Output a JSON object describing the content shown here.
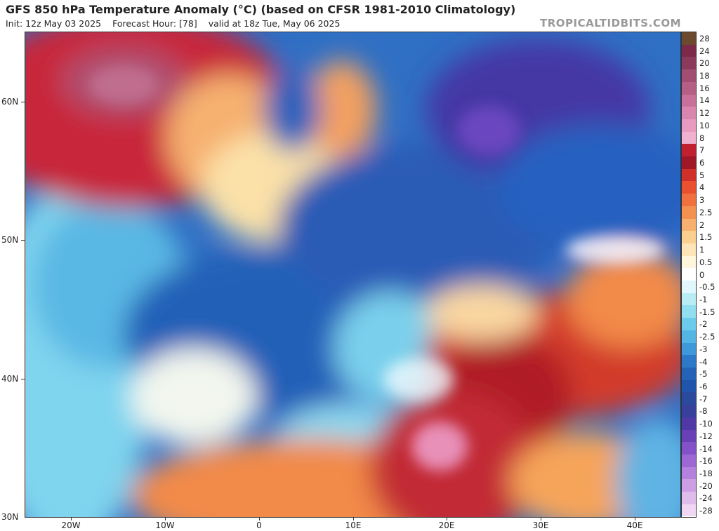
{
  "header": {
    "title": "GFS 850 hPa Temperature Anomaly (°C) (based on CFSR 1981-2010 Climatology)",
    "init": "Init: 12z May 03 2025",
    "forecast_hour": "Forecast Hour: [78]",
    "valid": "valid at 18z Tue, May 06 2025",
    "brand": "TROPICALTIDBITS.COM"
  },
  "axes": {
    "lat_labels": [
      "60N",
      "50N",
      "40N",
      "30N"
    ],
    "lon_labels": [
      "20W",
      "10W",
      "0",
      "10E",
      "20E",
      "30E",
      "40E"
    ]
  },
  "colorbar": {
    "labels": [
      "28",
      "24",
      "20",
      "18",
      "16",
      "14",
      "12",
      "10",
      "8",
      "7",
      "6",
      "5",
      "4",
      "3",
      "2.5",
      "2",
      "1.5",
      "1",
      "0.5",
      "0",
      "-0.5",
      "-1",
      "-1.5",
      "-2",
      "-2.5",
      "-3",
      "-4",
      "-5",
      "-6",
      "-7",
      "-8",
      "-10",
      "-12",
      "-14",
      "-16",
      "-18",
      "-20",
      "-24",
      "-28"
    ],
    "colors": [
      "#6b4a2e",
      "#7d2a4a",
      "#8c3a5c",
      "#a24d72",
      "#b55f86",
      "#c8709a",
      "#d985ad",
      "#e89ac0",
      "#f0b0cf",
      "#c0202f",
      "#a01828",
      "#d0302a",
      "#e85030",
      "#f07040",
      "#f49050",
      "#f8b070",
      "#fbcf90",
      "#fde5b8",
      "#fff6dc",
      "#ffffff",
      "#e0f7fb",
      "#b8ecf5",
      "#90def0",
      "#6ccbeb",
      "#52b5e4",
      "#3e98da",
      "#2d78c9",
      "#2463b8",
      "#1f55ab",
      "#2a4a9e",
      "#37409a",
      "#5038a6",
      "#6a40b8",
      "#8452c8",
      "#9c68d4",
      "#b482dc",
      "#cc9ee4",
      "#e0bcec",
      "#f0d8f4"
    ]
  }
}
